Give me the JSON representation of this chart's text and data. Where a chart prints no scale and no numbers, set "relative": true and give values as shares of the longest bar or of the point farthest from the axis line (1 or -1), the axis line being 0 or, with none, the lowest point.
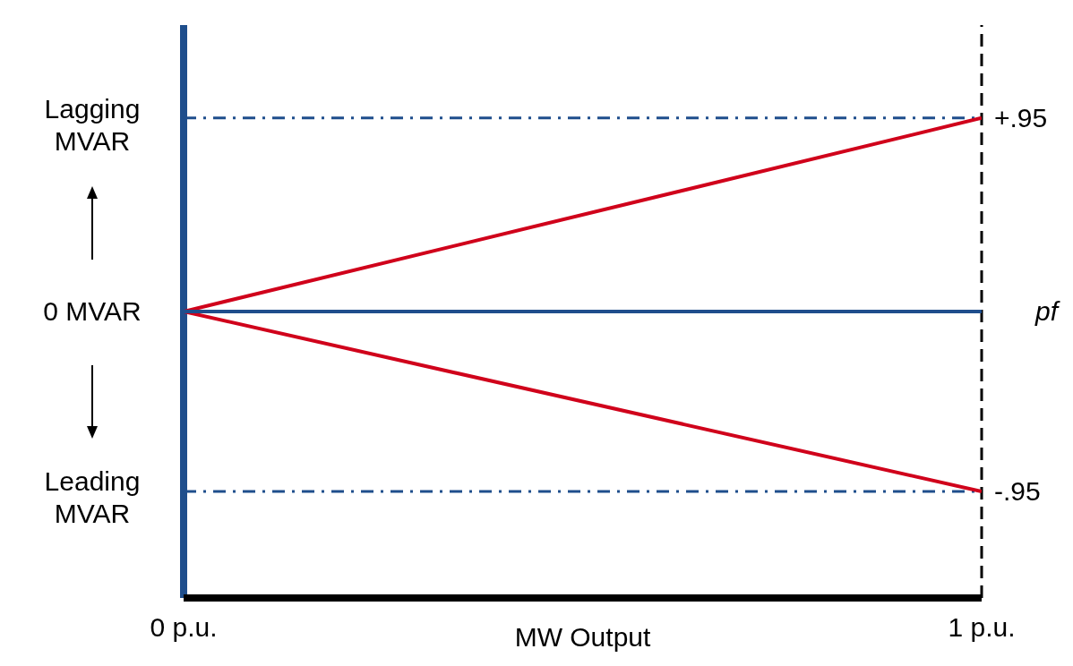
{
  "chart_data": {
    "type": "line",
    "relative": true,
    "xlabel": "MW Output",
    "x": [
      0,
      1
    ],
    "xlim": [
      0,
      1
    ],
    "xticks": [
      {
        "value": 0,
        "label": "0 p.u."
      },
      {
        "value": 1,
        "label": "1 p.u."
      }
    ],
    "series": [
      {
        "color": "#d0021b",
        "values": [
          0,
          1
        ]
      },
      {
        "color": "#d0021b",
        "values": [
          0,
          -0.93
        ]
      },
      {
        "name": "pf",
        "color": "#1f4e8c",
        "values": [
          0,
          0
        ]
      }
    ],
    "ref_lines": [
      {
        "axis": "y",
        "value": 1,
        "color": "#1f4e8c",
        "line_style": "dashed"
      },
      {
        "axis": "y",
        "value": -0.93,
        "color": "#1f4e8c",
        "line_style": "dashed"
      },
      {
        "axis": "x",
        "value": 1,
        "color": "#000000",
        "line_style": "dashed"
      },
      {
        "axis": "x",
        "value": 0,
        "color": "#1f4e8c",
        "line_style": "solid"
      }
    ],
    "annotations": [
      "Lagging MVAR",
      "0 MVAR",
      "Leading MVAR",
      {
        "text": "+.95",
        "x": 1,
        "y": 1
      },
      {
        "text": "-.95",
        "x": 1,
        "y": -0.93
      }
    ],
    "grid": false,
    "legend": false,
    "marker": "none",
    "line_style": "solid"
  }
}
